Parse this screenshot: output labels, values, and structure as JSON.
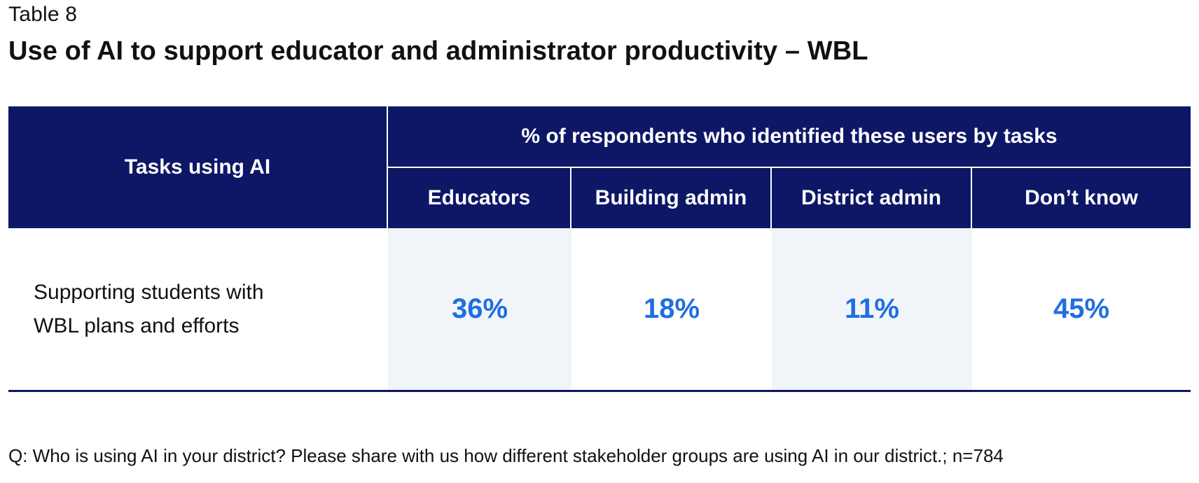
{
  "table_label": "Table 8",
  "title": "Use of AI to support educator and administrator productivity – WBL",
  "footnote": "Q: Who is using AI in your district? Please share with us how different stakeholder groups are using AI in our district.; n=784",
  "chart_data": {
    "type": "table",
    "title": "Use of AI to support educator and administrator productivity – WBL",
    "row_header": "Tasks using AI",
    "group_header": "% of respondents who identified these users by tasks",
    "columns": [
      "Educators",
      "Building admin",
      "District admin",
      "Don’t know"
    ],
    "rows": [
      {
        "label_lines": [
          "Supporting students with",
          "WBL plans and efforts"
        ],
        "values": [
          "36%",
          "18%",
          "11%",
          "45%"
        ]
      }
    ]
  },
  "colors": {
    "header_background": "#0e1766",
    "value_text": "#1f6fe0",
    "shaded_cell": "#f1f5fa"
  }
}
